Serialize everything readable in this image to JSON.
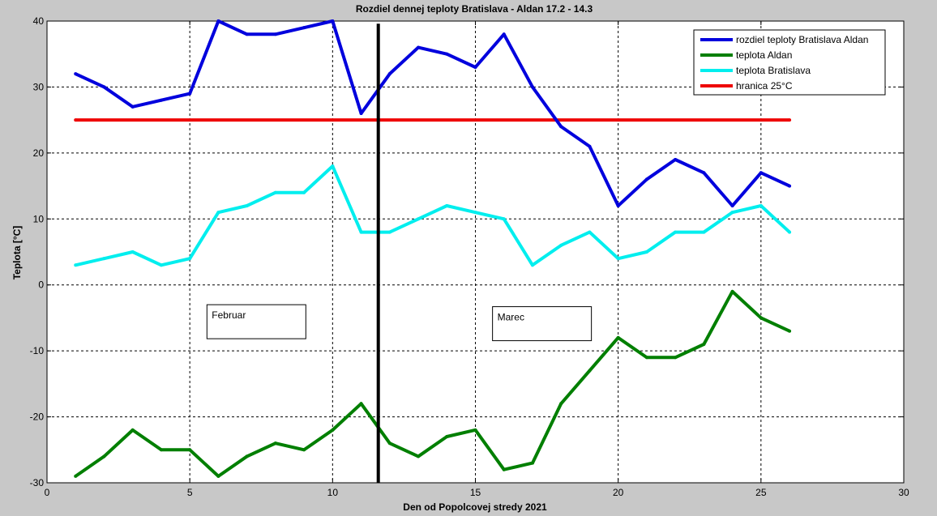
{
  "chart_data": {
    "type": "line",
    "title": "Rozdiel dennej teploty Bratislava - Aldan 17.2 - 14.3",
    "xlabel": "Den od Popolcovej stredy 2021",
    "ylabel": "Teplota [°C]",
    "xlim": [
      0,
      30
    ],
    "ylim": [
      -30,
      40
    ],
    "xticks": [
      0,
      5,
      10,
      15,
      20,
      25,
      30
    ],
    "yticks": [
      -30,
      -20,
      -10,
      0,
      10,
      20,
      30,
      40
    ],
    "grid": true,
    "legend_position": "top-right",
    "x": [
      1,
      2,
      3,
      4,
      5,
      6,
      7,
      8,
      9,
      10,
      11,
      12,
      13,
      14,
      15,
      16,
      17,
      18,
      19,
      20,
      21,
      22,
      23,
      24,
      25,
      26
    ],
    "series": [
      {
        "name": "rozdiel teploty Bratislava Aldan",
        "color": "#0000dd",
        "values": [
          32,
          30,
          27,
          28,
          29,
          40,
          38,
          38,
          39,
          40,
          26,
          32,
          36,
          35,
          33,
          38,
          30,
          24,
          21,
          12,
          16,
          19,
          17,
          12,
          17,
          15
        ]
      },
      {
        "name": "teplota Aldan",
        "color": "#007f00",
        "values": [
          -29,
          -26,
          -22,
          -25,
          -25,
          -29,
          -26,
          -24,
          -25,
          -22,
          -18,
          -24,
          -26,
          -23,
          -22,
          -28,
          -27,
          -18,
          -13,
          -8,
          -11,
          -11,
          -9,
          -1,
          -5,
          -7
        ]
      },
      {
        "name": "teplota Bratislava",
        "color": "#00eeee",
        "values": [
          3,
          4,
          5,
          3,
          4,
          11,
          12,
          14,
          14,
          18,
          8,
          8,
          10,
          12,
          11,
          10,
          3,
          6,
          8,
          4,
          5,
          8,
          8,
          11,
          12,
          8
        ]
      },
      {
        "name": "hranica 25°C",
        "color": "#ee0000",
        "x": [
          1,
          26
        ],
        "values": [
          25,
          25
        ]
      }
    ],
    "vertical_line": {
      "x": 11.6,
      "color": "#000000"
    },
    "annotations": [
      {
        "text": "Februar",
        "x": 5.6,
        "y": -3
      },
      {
        "text": "Marec",
        "x": 15.6,
        "y": -3.3
      }
    ]
  }
}
